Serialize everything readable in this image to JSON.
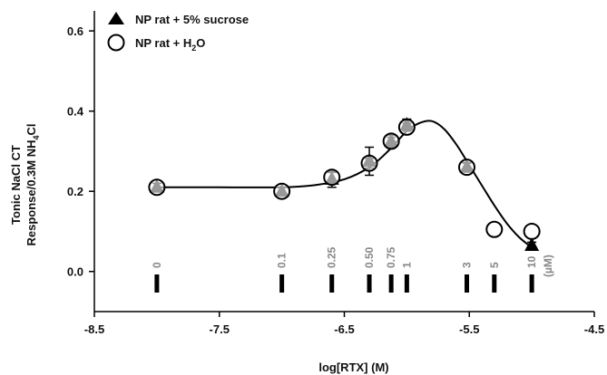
{
  "chart_data": {
    "type": "scatter",
    "title": "",
    "xlabel": "log[RTX] (M)",
    "ylabel_line1": "Tonic NaCl CT",
    "ylabel_line2_main": "Response/0.3M NH",
    "ylabel_line2_sub": "4",
    "ylabel_line2_end": "Cl",
    "xlim": [
      -8.5,
      -4.5
    ],
    "ylim": [
      -0.1,
      0.65
    ],
    "x_ticks": [
      -8.5,
      -7.5,
      -6.5,
      -5.5,
      -4.5
    ],
    "x_tick_labels": [
      "-8.5",
      "-7.5",
      "-6.5",
      "-5.5",
      "-4.5"
    ],
    "y_ticks": [
      0.0,
      0.2,
      0.4,
      0.6
    ],
    "y_tick_labels": [
      "0.0",
      "0.2",
      "0.4",
      "0.6"
    ],
    "legend_position": "top-left",
    "series": [
      {
        "name_main": "NP rat + 5% sucrose",
        "marker": "filled-triangle",
        "color": "#000000",
        "x": [
          -8.0,
          -7.0,
          -6.6,
          -6.3,
          -6.125,
          -6.0,
          -5.52,
          -5.0
        ],
        "y": [
          0.21,
          0.2,
          0.23,
          0.275,
          0.325,
          0.365,
          0.26,
          0.065
        ],
        "err": [
          0.01,
          0.01,
          0.02,
          0.035,
          0.015,
          0.015,
          0.012,
          0.008
        ]
      },
      {
        "name_main": "NP rat + H",
        "name_sub": "2",
        "name_end": "O",
        "marker": "open-circle",
        "color": "#000000",
        "x": [
          -8.0,
          -7.0,
          -6.6,
          -6.3,
          -6.125,
          -6.0,
          -5.52,
          -5.3,
          -5.0
        ],
        "y": [
          0.21,
          0.2,
          0.235,
          0.27,
          0.325,
          0.36,
          0.26,
          0.105,
          0.1
        ],
        "err": [
          0.01,
          0.01,
          0.012,
          0.012,
          0.01,
          0.01,
          0.01,
          0.0,
          0.0
        ]
      }
    ],
    "fit_curve": {
      "x": [
        -8.0,
        -7.5,
        -7.0,
        -6.75,
        -6.5,
        -6.3,
        -6.15,
        -6.0,
        -5.9,
        -5.8,
        -5.7,
        -5.6,
        -5.5,
        -5.4,
        -5.3,
        -5.2,
        -5.1,
        -5.0
      ],
      "y": [
        0.21,
        0.21,
        0.21,
        0.215,
        0.23,
        0.26,
        0.3,
        0.35,
        0.37,
        0.375,
        0.355,
        0.315,
        0.265,
        0.215,
        0.165,
        0.12,
        0.085,
        0.06
      ]
    },
    "concentration_markers": {
      "x": [
        -8.0,
        -7.0,
        -6.6,
        -6.3,
        -6.125,
        -6.0,
        -5.52,
        -5.3,
        -5.0
      ],
      "labels": [
        "0",
        "0.1",
        "0.25",
        "0.50",
        "0.75",
        "1",
        "3",
        "5",
        "10"
      ],
      "unit": "(µM)"
    }
  }
}
